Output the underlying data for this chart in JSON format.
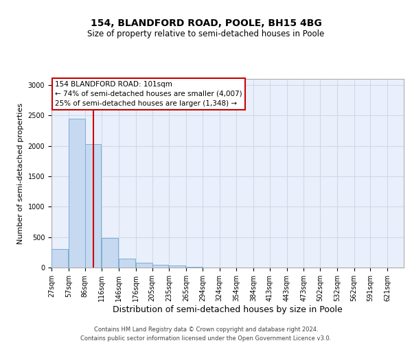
{
  "title1": "154, BLANDFORD ROAD, POOLE, BH15 4BG",
  "title2": "Size of property relative to semi-detached houses in Poole",
  "xlabel": "Distribution of semi-detached houses by size in Poole",
  "ylabel": "Number of semi-detached properties",
  "footer1": "Contains HM Land Registry data © Crown copyright and database right 2024.",
  "footer2": "Contains public sector information licensed under the Open Government Licence v3.0.",
  "annotation_line1": "154 BLANDFORD ROAD: 101sqm",
  "annotation_line2": "← 74% of semi-detached houses are smaller (4,007)",
  "annotation_line3": "25% of semi-detached houses are larger (1,348) →",
  "bar_left_edges": [
    27,
    57,
    86,
    116,
    146,
    176,
    205,
    235,
    265,
    294,
    324,
    354,
    384,
    413,
    443,
    473,
    502,
    532,
    562,
    591,
    621
  ],
  "bar_heights": [
    300,
    2450,
    2030,
    480,
    145,
    75,
    50,
    35,
    10,
    5,
    3,
    2,
    1,
    1,
    0,
    0,
    0,
    0,
    0,
    0,
    0
  ],
  "bar_color": "#c6d9f0",
  "bar_edge_color": "#7bafd4",
  "red_line_x": 101,
  "red_line_color": "#cc0000",
  "annotation_box_color": "#ffffff",
  "annotation_box_edge": "#cc0000",
  "ylim": [
    0,
    3100
  ],
  "yticks": [
    0,
    500,
    1000,
    1500,
    2000,
    2500,
    3000
  ],
  "grid_color": "#d0d8e8",
  "bg_color": "#eaf0fb",
  "title1_fontsize": 10,
  "title2_fontsize": 8.5,
  "xlabel_fontsize": 9,
  "ylabel_fontsize": 8,
  "tick_fontsize": 7,
  "footer_fontsize": 6
}
